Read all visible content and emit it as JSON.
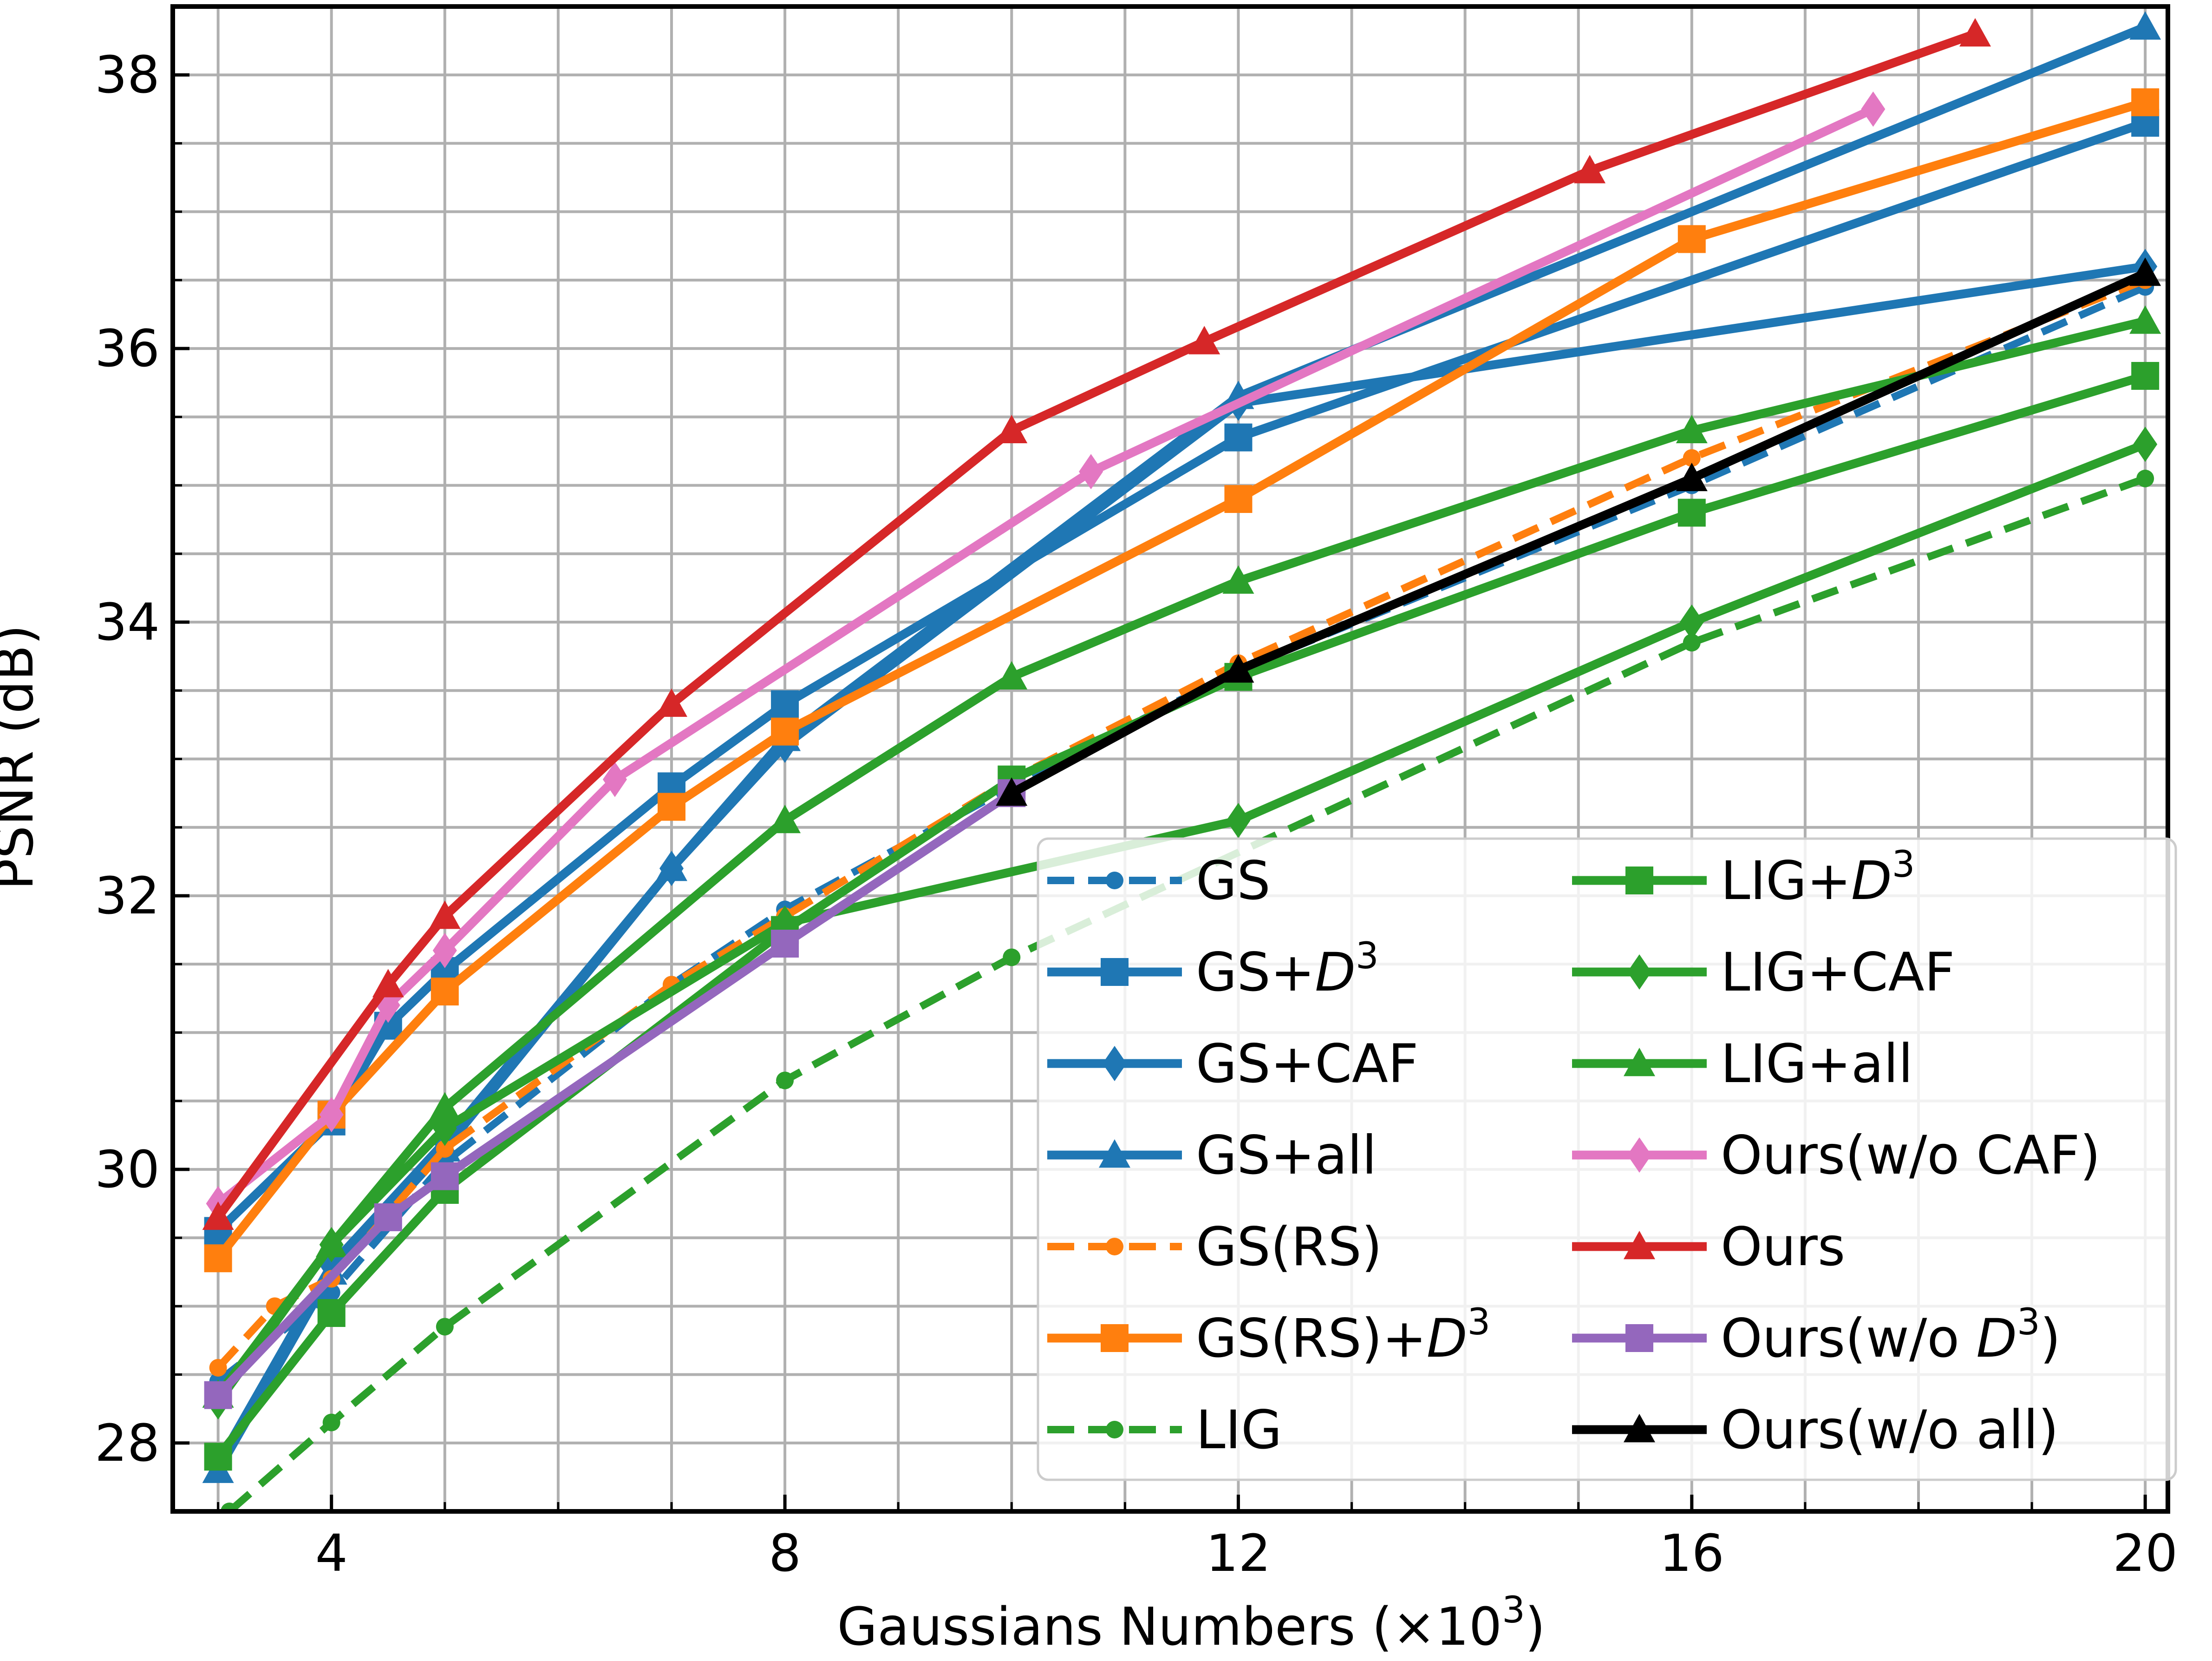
{
  "chart_data": {
    "type": "line",
    "title": "",
    "xlabel": "Gaussians Numbers (×10",
    "xlabel_sup": "3",
    "xlabel_end": ")",
    "ylabel": "PSNR (dB)",
    "xlim": [
      2.6,
      20.2
    ],
    "ylim": [
      27.5,
      38.5
    ],
    "xticks": [
      4,
      8,
      12,
      16,
      20
    ],
    "yticks": [
      28,
      30,
      32,
      34,
      36,
      38
    ],
    "grid": true,
    "legend_position": "bottom-right",
    "series": [
      {
        "name": "GS",
        "suffix": "",
        "color": "#1f77b4",
        "dashed": true,
        "marker": "dot",
        "x": [
          3,
          4,
          5,
          7,
          8,
          10,
          12,
          16,
          20
        ],
        "y": [
          28.45,
          29.1,
          30.05,
          31.35,
          31.9,
          32.8,
          33.65,
          35.0,
          36.45
        ]
      },
      {
        "name": "GS+",
        "suffix": "D3",
        "color": "#1f77b4",
        "dashed": false,
        "marker": "square",
        "x": [
          3,
          4,
          4.5,
          5,
          7,
          8,
          12,
          20
        ],
        "y": [
          29.55,
          30.35,
          31.05,
          31.45,
          32.8,
          33.4,
          35.35,
          37.65
        ]
      },
      {
        "name": "GS+CAF",
        "suffix": "",
        "color": "#1f77b4",
        "dashed": false,
        "marker": "diamond",
        "x": [
          3,
          4,
          5,
          7,
          8,
          12,
          20
        ],
        "y": [
          27.85,
          29.3,
          30.2,
          32.2,
          33.1,
          35.6,
          36.6
        ]
      },
      {
        "name": "GS+all",
        "suffix": "",
        "color": "#1f77b4",
        "dashed": false,
        "marker": "triangle",
        "x": [
          3,
          4,
          5,
          7,
          8,
          12,
          20
        ],
        "y": [
          27.8,
          29.25,
          30.15,
          32.2,
          33.15,
          35.65,
          38.35
        ]
      },
      {
        "name": "GS(RS)",
        "suffix": "",
        "color": "#ff7f0e",
        "dashed": true,
        "marker": "dot",
        "x": [
          3,
          3.5,
          4,
          5,
          7,
          8,
          10,
          12,
          16,
          20
        ],
        "y": [
          28.55,
          29.0,
          29.2,
          30.15,
          31.35,
          31.85,
          32.85,
          33.7,
          35.2,
          36.5
        ]
      },
      {
        "name": "GS(RS)+",
        "suffix": "D3",
        "color": "#ff7f0e",
        "dashed": false,
        "marker": "square",
        "x": [
          3,
          4,
          5,
          7,
          8,
          12,
          16,
          20
        ],
        "y": [
          29.35,
          30.4,
          31.3,
          32.65,
          33.2,
          34.9,
          36.8,
          37.8
        ]
      },
      {
        "name": "LIG",
        "suffix": "",
        "color": "#2ca02c",
        "dashed": true,
        "marker": "dot",
        "x": [
          3.1,
          4,
          5,
          8,
          10,
          16,
          20
        ],
        "y": [
          27.5,
          28.15,
          28.85,
          30.65,
          31.55,
          33.85,
          35.05
        ]
      },
      {
        "name": "LIG+",
        "suffix": "D3",
        "color": "#2ca02c",
        "dashed": false,
        "marker": "square",
        "x": [
          3,
          4,
          5,
          8,
          10,
          12,
          16,
          20
        ],
        "y": [
          27.9,
          28.95,
          29.85,
          31.75,
          32.85,
          33.6,
          34.8,
          35.8
        ]
      },
      {
        "name": "LIG+CAF",
        "suffix": "",
        "color": "#2ca02c",
        "dashed": false,
        "marker": "diamond",
        "x": [
          3,
          4,
          5,
          8,
          12,
          16,
          20
        ],
        "y": [
          28.3,
          29.45,
          30.3,
          31.8,
          32.55,
          34.0,
          35.3
        ]
      },
      {
        "name": "LIG+all",
        "suffix": "",
        "color": "#2ca02c",
        "dashed": false,
        "marker": "triangle",
        "x": [
          3,
          4,
          5,
          8,
          10,
          12,
          16,
          20
        ],
        "y": [
          28.35,
          29.45,
          30.45,
          32.55,
          33.6,
          34.3,
          35.4,
          36.2
        ]
      },
      {
        "name": "Ours(w/o CAF)",
        "suffix": "",
        "color": "#e377c2",
        "dashed": false,
        "marker": "diamond",
        "x": [
          3,
          4,
          4.5,
          5,
          6.5,
          10.7,
          17.6
        ],
        "y": [
          29.75,
          30.4,
          31.2,
          31.6,
          32.85,
          35.1,
          37.75
        ]
      },
      {
        "name": "Ours",
        "suffix": "",
        "color": "#d62728",
        "dashed": false,
        "marker": "triangle",
        "x": [
          3,
          4.5,
          5,
          7,
          10,
          11.7,
          15.1,
          18.5
        ],
        "y": [
          29.65,
          31.35,
          31.85,
          33.4,
          35.4,
          36.05,
          37.3,
          38.3
        ]
      },
      {
        "name": "Ours(w/o ",
        "suffix": "D3)",
        "color": "#9467bd",
        "dashed": false,
        "marker": "square",
        "x": [
          3,
          4.5,
          5,
          8,
          10
        ],
        "y": [
          28.35,
          29.65,
          29.95,
          31.65,
          32.75
        ]
      },
      {
        "name": "Ours(w/o all)",
        "suffix": "",
        "color": "#000000",
        "dashed": false,
        "marker": "triangle",
        "x": [
          10,
          12,
          16,
          20
        ],
        "y": [
          32.75,
          33.65,
          35.05,
          36.55
        ]
      }
    ]
  }
}
